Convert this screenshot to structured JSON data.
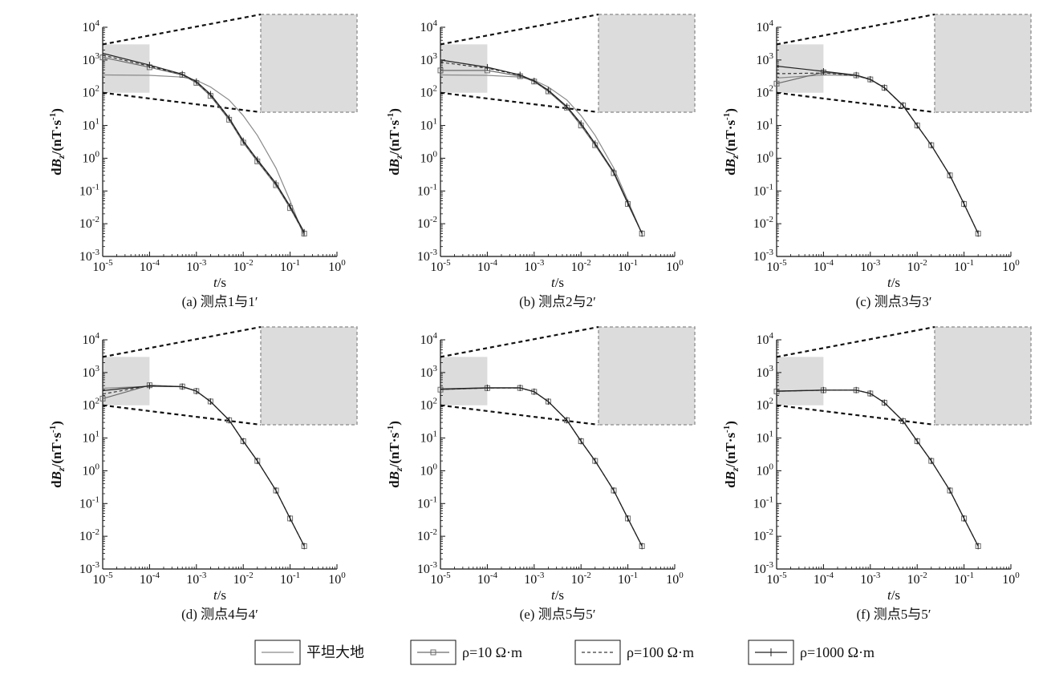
{
  "chart_data": {
    "type": "line",
    "x_scale": "log",
    "y_scale": "log",
    "xlim": [
      1e-05,
      1
    ],
    "ylim": [
      0.001,
      10000
    ],
    "x_ticks": [
      "10^-5",
      "10^-4",
      "10^-3",
      "10^-2",
      "10^-1",
      "10^0"
    ],
    "y_ticks": [
      "10^-3",
      "10^-2",
      "10^-1",
      "10^0",
      "10^1",
      "10^2",
      "10^3",
      "10^4"
    ],
    "xlabel": "t/s",
    "ylabel": "dBz/dt/(nT·s-1)",
    "legend": {
      "placement": "bottom",
      "entries": [
        {
          "label": "平坦大地",
          "style": "solid"
        },
        {
          "label": "ρ=10 Ω·m",
          "style": "square-markers"
        },
        {
          "label": "ρ=100 Ω·m",
          "style": "dashed"
        },
        {
          "label": "ρ=1000 Ω·m",
          "style": "tick-markers"
        }
      ]
    },
    "inset": {
      "x_range": [
        1e-05,
        0.0001
      ],
      "y_range": [
        100,
        3000
      ],
      "background": "#dcdcdc"
    },
    "panels": [
      {
        "caption": "(a) 测点1与1′",
        "series": [
          {
            "name": "平坦大地",
            "x": [
              1e-05,
              0.0001,
              0.0005,
              0.001,
              0.002,
              0.005,
              0.01,
              0.02,
              0.05,
              0.1,
              0.2
            ],
            "y": [
              350,
              340,
              300,
              240,
              150,
              60,
              20,
              5,
              0.5,
              0.05,
              0.004
            ]
          },
          {
            "name": "ρ=10 Ω·m",
            "x": [
              1e-05,
              0.0001,
              0.0005,
              0.001,
              0.002,
              0.005,
              0.01,
              0.02,
              0.05,
              0.1,
              0.2
            ],
            "y": [
              1200,
              600,
              350,
              200,
              80,
              15,
              3,
              0.8,
              0.15,
              0.03,
              0.005
            ]
          },
          {
            "name": "ρ=100 Ω·m",
            "x": [
              1e-05,
              0.0001,
              0.0005,
              0.001,
              0.002,
              0.005,
              0.01,
              0.02,
              0.05,
              0.1,
              0.2
            ],
            "y": [
              1400,
              650,
              360,
              210,
              85,
              16,
              3.2,
              0.85,
              0.16,
              0.032,
              0.005
            ]
          },
          {
            "name": "ρ=1000 Ω·m",
            "x": [
              1e-05,
              0.0001,
              0.0005,
              0.001,
              0.002,
              0.005,
              0.01,
              0.02,
              0.05,
              0.1,
              0.2
            ],
            "y": [
              1600,
              700,
              370,
              220,
              90,
              17,
              3.4,
              0.9,
              0.17,
              0.034,
              0.0055
            ]
          }
        ]
      },
      {
        "caption": "(b) 测点2与2′",
        "series": [
          {
            "name": "平坦大地",
            "x": [
              1e-05,
              0.0001,
              0.0005,
              0.001,
              0.002,
              0.005,
              0.01,
              0.02,
              0.05,
              0.1,
              0.2
            ],
            "y": [
              350,
              340,
              300,
              240,
              150,
              60,
              20,
              5,
              0.5,
              0.05,
              0.005
            ]
          },
          {
            "name": "ρ=10 Ω·m",
            "x": [
              1e-05,
              0.0001,
              0.0005,
              0.001,
              0.002,
              0.005,
              0.01,
              0.02,
              0.05,
              0.1,
              0.2
            ],
            "y": [
              480,
              480,
              320,
              220,
              110,
              35,
              10,
              2.5,
              0.35,
              0.04,
              0.005
            ]
          },
          {
            "name": "ρ=100 Ω·m",
            "x": [
              1e-05,
              0.0001,
              0.0005,
              0.001,
              0.002,
              0.005,
              0.01,
              0.02,
              0.05,
              0.1,
              0.2
            ],
            "y": [
              850,
              560,
              340,
              225,
              115,
              37,
              11,
              2.7,
              0.37,
              0.042,
              0.005
            ]
          },
          {
            "name": "ρ=1000 Ω·m",
            "x": [
              1e-05,
              0.0001,
              0.0005,
              0.001,
              0.002,
              0.005,
              0.01,
              0.02,
              0.05,
              0.1,
              0.2
            ],
            "y": [
              1000,
              600,
              350,
              230,
              120,
              38,
              11.5,
              2.8,
              0.38,
              0.043,
              0.005
            ]
          }
        ]
      },
      {
        "caption": "(c) 测点3与3′",
        "series": [
          {
            "name": "平坦大地",
            "x": [
              1e-05,
              0.0001,
              0.0005,
              0.001,
              0.002,
              0.005,
              0.01,
              0.02,
              0.05,
              0.1,
              0.2
            ],
            "y": [
              280,
              350,
              330,
              250,
              140,
              40,
              10,
              2.5,
              0.3,
              0.04,
              0.005
            ]
          },
          {
            "name": "ρ=10 Ω·m",
            "x": [
              1e-05,
              0.0001,
              0.0005,
              0.001,
              0.002,
              0.005,
              0.01,
              0.02,
              0.05,
              0.1,
              0.2
            ],
            "y": [
              190,
              420,
              340,
              255,
              142,
              41,
              10,
              2.5,
              0.3,
              0.04,
              0.005
            ]
          },
          {
            "name": "ρ=100 Ω·m",
            "x": [
              1e-05,
              0.0001,
              0.0005,
              0.001,
              0.002,
              0.005,
              0.01,
              0.02,
              0.05,
              0.1,
              0.2
            ],
            "y": [
              380,
              400,
              335,
              252,
              141,
              40,
              10,
              2.5,
              0.3,
              0.04,
              0.005
            ]
          },
          {
            "name": "ρ=1000 Ω·m",
            "x": [
              1e-05,
              0.0001,
              0.0005,
              0.001,
              0.002,
              0.005,
              0.01,
              0.02,
              0.05,
              0.1,
              0.2
            ],
            "y": [
              650,
              450,
              345,
              258,
              143,
              41,
              10,
              2.5,
              0.3,
              0.04,
              0.005
            ]
          }
        ]
      },
      {
        "caption": "(d) 测点4与4′",
        "series": [
          {
            "name": "平坦大地",
            "x": [
              1e-05,
              0.0001,
              0.0005,
              0.001,
              0.002,
              0.005,
              0.01,
              0.02,
              0.05,
              0.1,
              0.2
            ],
            "y": [
              330,
              380,
              370,
              270,
              130,
              35,
              8,
              2,
              0.25,
              0.035,
              0.005
            ]
          },
          {
            "name": "ρ=10 Ω·m",
            "x": [
              1e-05,
              0.0001,
              0.0005,
              0.001,
              0.002,
              0.005,
              0.01,
              0.02,
              0.05,
              0.1,
              0.2
            ],
            "y": [
              160,
              410,
              375,
              272,
              131,
              35,
              8,
              2,
              0.25,
              0.035,
              0.005
            ]
          },
          {
            "name": "ρ=100 Ω·m",
            "x": [
              1e-05,
              0.0001,
              0.0005,
              0.001,
              0.002,
              0.005,
              0.01,
              0.02,
              0.05,
              0.1,
              0.2
            ],
            "y": [
              220,
              395,
              372,
              271,
              130,
              35,
              8,
              2,
              0.25,
              0.035,
              0.005
            ]
          },
          {
            "name": "ρ=1000 Ω·m",
            "x": [
              1e-05,
              0.0001,
              0.0005,
              0.001,
              0.002,
              0.005,
              0.01,
              0.02,
              0.05,
              0.1,
              0.2
            ],
            "y": [
              280,
              390,
              371,
              270,
              130,
              35,
              8,
              2,
              0.25,
              0.035,
              0.005
            ]
          }
        ]
      },
      {
        "caption": "(e) 测点5与5′",
        "series": [
          {
            "name": "平坦大地",
            "x": [
              1e-05,
              0.0001,
              0.0005,
              0.001,
              0.002,
              0.005,
              0.01,
              0.02,
              0.05,
              0.1,
              0.2
            ],
            "y": [
              310,
              340,
              340,
              260,
              130,
              35,
              8,
              2,
              0.25,
              0.035,
              0.005
            ]
          },
          {
            "name": "ρ=10 Ω·m",
            "x": [
              1e-05,
              0.0001,
              0.0005,
              0.001,
              0.002,
              0.005,
              0.01,
              0.02,
              0.05,
              0.1,
              0.2
            ],
            "y": [
              300,
              335,
              338,
              259,
              130,
              35,
              8,
              2,
              0.25,
              0.035,
              0.005
            ]
          },
          {
            "name": "ρ=100 Ω·m",
            "x": [
              1e-05,
              0.0001,
              0.0005,
              0.001,
              0.002,
              0.005,
              0.01,
              0.02,
              0.05,
              0.1,
              0.2
            ],
            "y": [
              305,
              338,
              339,
              260,
              130,
              35,
              8,
              2,
              0.25,
              0.035,
              0.005
            ]
          },
          {
            "name": "ρ=1000 Ω·m",
            "x": [
              1e-05,
              0.0001,
              0.0005,
              0.001,
              0.002,
              0.005,
              0.01,
              0.02,
              0.05,
              0.1,
              0.2
            ],
            "y": [
              315,
              342,
              341,
              261,
              130,
              35,
              8,
              2,
              0.25,
              0.035,
              0.005
            ]
          }
        ]
      },
      {
        "caption": "(f) 测点5与5′",
        "series": [
          {
            "name": "平坦大地",
            "x": [
              1e-05,
              0.0001,
              0.0005,
              0.001,
              0.002,
              0.005,
              0.01,
              0.02,
              0.05,
              0.1,
              0.2
            ],
            "y": [
              270,
              290,
              290,
              230,
              120,
              33,
              8,
              2,
              0.25,
              0.035,
              0.005
            ]
          },
          {
            "name": "ρ=10 Ω·m",
            "x": [
              1e-05,
              0.0001,
              0.0005,
              0.001,
              0.002,
              0.005,
              0.01,
              0.02,
              0.05,
              0.1,
              0.2
            ],
            "y": [
              265,
              288,
              289,
              229,
              120,
              33,
              8,
              2,
              0.25,
              0.035,
              0.005
            ]
          },
          {
            "name": "ρ=100 Ω·m",
            "x": [
              1e-05,
              0.0001,
              0.0005,
              0.001,
              0.002,
              0.005,
              0.01,
              0.02,
              0.05,
              0.1,
              0.2
            ],
            "y": [
              268,
              289,
              290,
              230,
              120,
              33,
              8,
              2,
              0.25,
              0.035,
              0.005
            ]
          },
          {
            "name": "ρ=1000 Ω·m",
            "x": [
              1e-05,
              0.0001,
              0.0005,
              0.001,
              0.002,
              0.005,
              0.01,
              0.02,
              0.05,
              0.1,
              0.2
            ],
            "y": [
              272,
              291,
              291,
              231,
              120,
              33,
              8,
              2,
              0.25,
              0.035,
              0.005
            ]
          }
        ]
      }
    ]
  },
  "colors": {
    "axis": "#111111",
    "flat": "#8a8a8a",
    "rho10": "#6a6a6a",
    "rho100": "#3a3a3a",
    "rho1000": "#222222",
    "inset_bg": "#dcdcdc",
    "inset_border": "#9a9a9a"
  }
}
